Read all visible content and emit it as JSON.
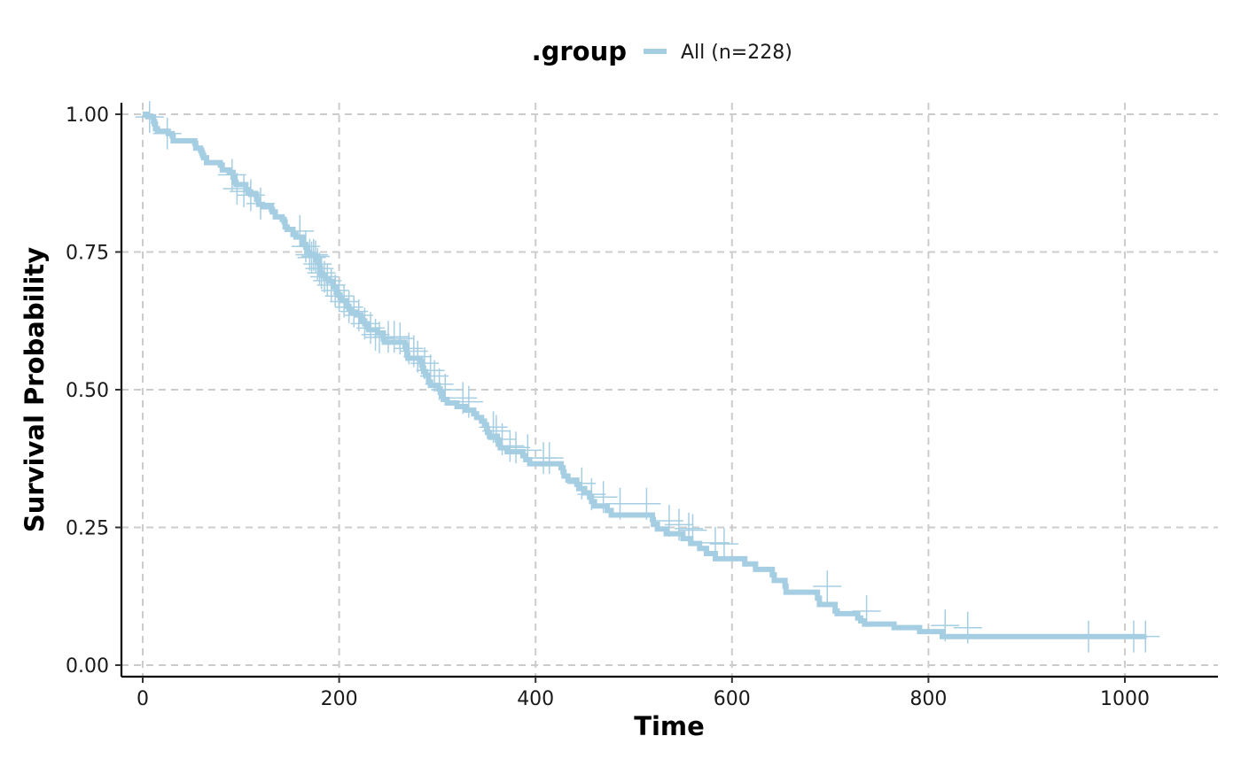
{
  "chart_data": {
    "type": "line",
    "subtype": "kaplan-meier-step",
    "xlabel": "Time",
    "ylabel": "Survival Probability",
    "xlim": [
      -20,
      1090
    ],
    "ylim": [
      -0.02,
      1.02
    ],
    "x_ticks": [
      0,
      200,
      400,
      600,
      800,
      1000
    ],
    "y_ticks": [
      0,
      0.25,
      0.5,
      0.75,
      1.0
    ],
    "x_tick_labels": [
      "0",
      "200",
      "400",
      "600",
      "800",
      "1000"
    ],
    "y_tick_labels": [
      "0.00",
      "0.25",
      "0.50",
      "0.75",
      "1.00"
    ],
    "grid": true,
    "legend": {
      "title": ".group",
      "position": "top"
    },
    "series": [
      {
        "name": "All (n=228)",
        "color": "#a6cee3",
        "x": [
          0,
          5,
          11,
          12,
          13,
          15,
          26,
          30,
          31,
          53,
          54,
          59,
          60,
          61,
          62,
          65,
          79,
          81,
          88,
          92,
          93,
          95,
          105,
          107,
          110,
          116,
          118,
          122,
          131,
          132,
          135,
          142,
          144,
          145,
          147,
          153,
          156,
          163,
          166,
          167,
          170,
          176,
          177,
          179,
          180,
          181,
          183,
          186,
          189,
          194,
          197,
          199,
          201,
          202,
          207,
          208,
          210,
          212,
          218,
          222,
          223,
          226,
          229,
          230,
          239,
          245,
          246,
          267,
          268,
          269,
          270,
          283,
          284,
          285,
          286,
          288,
          291,
          293,
          301,
          303,
          305,
          306,
          310,
          320,
          329,
          337,
          340,
          345,
          348,
          350,
          351,
          353,
          361,
          363,
          364,
          371,
          387,
          390,
          394,
          426,
          428,
          429,
          433,
          442,
          444,
          450,
          455,
          457,
          460,
          473,
          477,
          519,
          520,
          524,
          533,
          550,
          558,
          567,
          574,
          583,
          613,
          624,
          641,
          643,
          654,
          655,
          687,
          689,
          705,
          707,
          728,
          731,
          735,
          765,
          791,
          814,
          883,
          1022
        ],
        "y": [
          1.0,
          0.9956,
          0.9868,
          0.9825,
          0.9737,
          0.9693,
          0.9649,
          0.9605,
          0.9518,
          0.9474,
          0.9386,
          0.9342,
          0.9298,
          0.9254,
          0.921,
          0.9122,
          0.9078,
          0.8989,
          0.8945,
          0.8856,
          0.8768,
          0.8723,
          0.8634,
          0.8589,
          0.8544,
          0.8454,
          0.8364,
          0.8319,
          0.8273,
          0.8228,
          0.8137,
          0.8091,
          0.8046,
          0.7955,
          0.7909,
          0.7818,
          0.7772,
          0.7635,
          0.7589,
          0.7497,
          0.745,
          0.7403,
          0.7355,
          0.7307,
          0.7211,
          0.7114,
          0.7066,
          0.7017,
          0.6968,
          0.6869,
          0.6769,
          0.6718,
          0.6668,
          0.6617,
          0.6566,
          0.6514,
          0.6462,
          0.6409,
          0.6356,
          0.6303,
          0.6249,
          0.6196,
          0.6141,
          0.6087,
          0.6031,
          0.5919,
          0.5863,
          0.5805,
          0.5747,
          0.5629,
          0.557,
          0.551,
          0.5449,
          0.5388,
          0.5327,
          0.5265,
          0.5141,
          0.5078,
          0.5015,
          0.4951,
          0.4888,
          0.4823,
          0.4759,
          0.4694,
          0.4629,
          0.4562,
          0.4496,
          0.4429,
          0.4362,
          0.4294,
          0.4225,
          0.4156,
          0.4087,
          0.4016,
          0.3945,
          0.3874,
          0.3802,
          0.3729,
          0.3656,
          0.3583,
          0.3509,
          0.3433,
          0.3358,
          0.3282,
          0.3205,
          0.3127,
          0.3049,
          0.2969,
          0.2889,
          0.2807,
          0.2725,
          0.2642,
          0.2557,
          0.2472,
          0.2385,
          0.2297,
          0.2208,
          0.2118,
          0.2026,
          0.1932,
          0.1836,
          0.1739,
          0.1639,
          0.1537,
          0.1433,
          0.1325,
          0.1215,
          0.1101,
          0.0983,
          0.0935,
          0.0857,
          0.0804,
          0.0746,
          0.0682,
          0.0608,
          0.0518,
          0.0518,
          0.0518
        ]
      }
    ]
  },
  "censor_marks": [
    [
      7,
      0.995
    ],
    [
      25,
      0.965
    ],
    [
      91,
      0.89
    ],
    [
      96,
      0.865
    ],
    [
      103,
      0.86
    ],
    [
      110,
      0.853
    ],
    [
      120,
      0.838
    ],
    [
      160,
      0.788
    ],
    [
      166,
      0.76
    ],
    [
      170,
      0.745
    ],
    [
      172,
      0.74
    ],
    [
      174,
      0.745
    ],
    [
      176,
      0.742
    ],
    [
      178,
      0.728
    ],
    [
      180,
      0.72
    ],
    [
      182,
      0.712
    ],
    [
      185,
      0.705
    ],
    [
      188,
      0.698
    ],
    [
      192,
      0.69
    ],
    [
      196,
      0.68
    ],
    [
      200,
      0.67
    ],
    [
      205,
      0.66
    ],
    [
      210,
      0.65
    ],
    [
      215,
      0.642
    ],
    [
      220,
      0.635
    ],
    [
      226,
      0.62
    ],
    [
      232,
      0.612
    ],
    [
      237,
      0.6
    ],
    [
      241,
      0.595
    ],
    [
      250,
      0.596
    ],
    [
      256,
      0.596
    ],
    [
      262,
      0.593
    ],
    [
      271,
      0.575
    ],
    [
      276,
      0.57
    ],
    [
      280,
      0.56
    ],
    [
      287,
      0.548
    ],
    [
      293,
      0.535
    ],
    [
      297,
      0.525
    ],
    [
      302,
      0.51
    ],
    [
      308,
      0.5
    ],
    [
      326,
      0.485
    ],
    [
      332,
      0.478
    ],
    [
      357,
      0.432
    ],
    [
      360,
      0.425
    ],
    [
      366,
      0.41
    ],
    [
      374,
      0.398
    ],
    [
      380,
      0.395
    ],
    [
      392,
      0.39
    ],
    [
      408,
      0.376
    ],
    [
      414,
      0.376
    ],
    [
      447,
      0.33
    ],
    [
      457,
      0.31
    ],
    [
      469,
      0.305
    ],
    [
      486,
      0.293
    ],
    [
      513,
      0.293
    ],
    [
      536,
      0.262
    ],
    [
      546,
      0.255
    ],
    [
      556,
      0.248
    ],
    [
      560,
      0.245
    ],
    [
      583,
      0.222
    ],
    [
      592,
      0.22
    ],
    [
      697,
      0.143
    ],
    [
      737,
      0.098
    ],
    [
      817,
      0.072
    ],
    [
      840,
      0.068
    ],
    [
      963,
      0.052
    ],
    [
      1009,
      0.052
    ],
    [
      1021,
      0.052
    ]
  ]
}
